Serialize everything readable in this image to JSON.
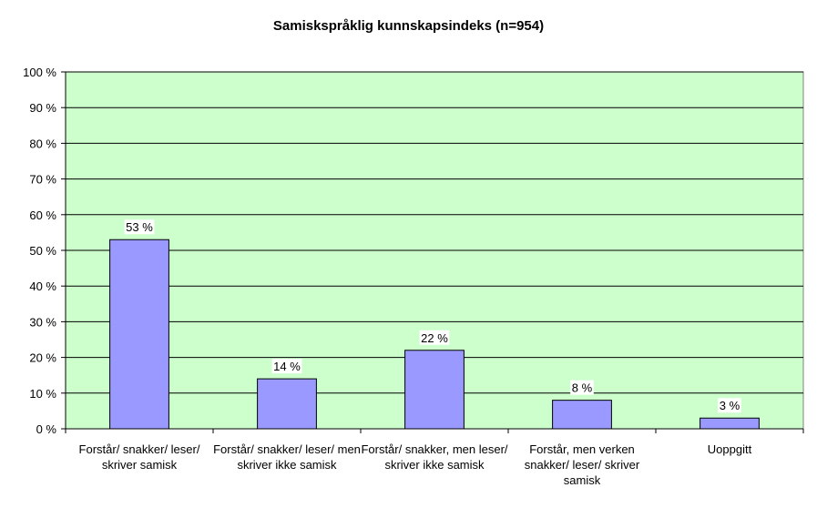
{
  "chart_data": {
    "type": "bar",
    "title": "Samiskspråklig kunnskapsindeks (n=954)",
    "categories": [
      "Forstår/ snakker/ leser/ skriver samisk",
      "Forstår/ snakker/ leser/ men skriver ikke samisk",
      "Forstår/ snakker, men leser/ skriver ikke samisk",
      "Forstår, men verken snakker/ leser/ skriver samisk",
      "Uoppgitt"
    ],
    "values": [
      53,
      14,
      22,
      8,
      3
    ],
    "data_labels": [
      "53 %",
      "14 %",
      "22 %",
      "8 %",
      "3 %"
    ],
    "y_ticks": [
      "0 %",
      "10 %",
      "20 %",
      "30 %",
      "40 %",
      "50 %",
      "60 %",
      "70 %",
      "80 %",
      "90 %",
      "100 %"
    ],
    "ylim": [
      0,
      100
    ],
    "grid": true,
    "colors": {
      "plot_background": "#ccffcc",
      "bar_fill": "#9999ff",
      "bar_stroke": "#000000",
      "gridline": "#000000"
    }
  }
}
